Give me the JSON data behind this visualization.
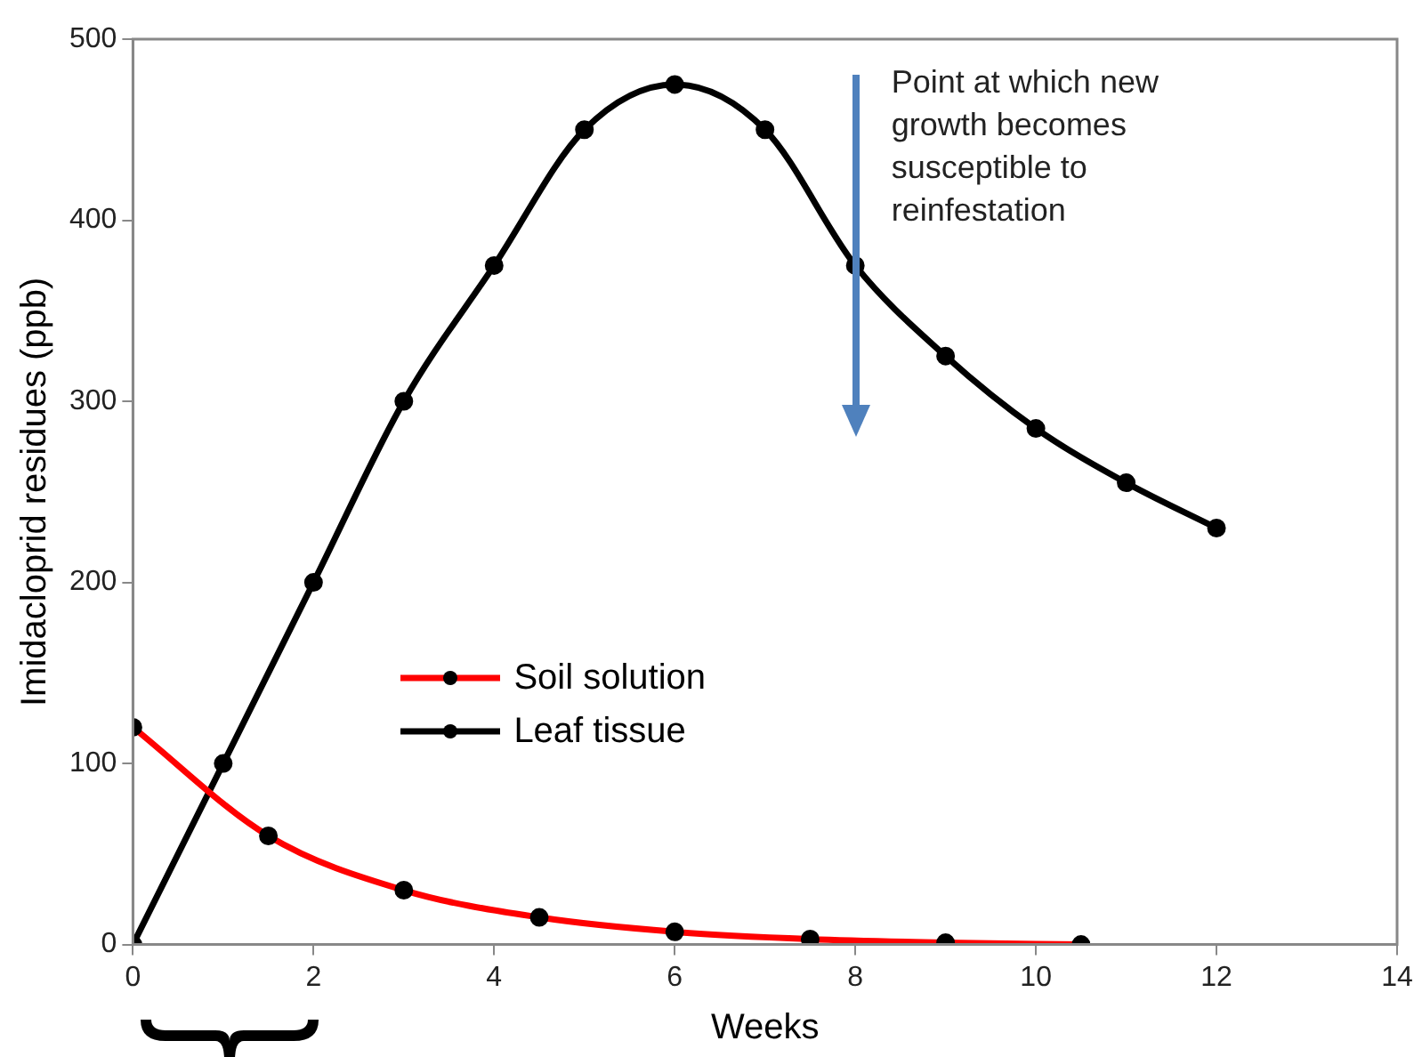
{
  "chart_data": {
    "type": "line",
    "xlabel": "Weeks",
    "ylabel": "Imidacloprid residues (ppb)",
    "xlim": [
      0,
      14
    ],
    "xticks": [
      0,
      2,
      4,
      6,
      8,
      10,
      12,
      14
    ],
    "ylim": [
      0,
      500
    ],
    "yticks": [
      0,
      100,
      200,
      300,
      400,
      500
    ],
    "grid": false,
    "legend": "left",
    "marker": "circle",
    "line_style": "solid",
    "series": [
      {
        "name": "Soil solution",
        "color": "#ff0000",
        "x": [
          0,
          1.5,
          3,
          4.5,
          6,
          7.5,
          9,
          10.5
        ],
        "values": [
          120,
          60,
          30,
          15,
          7,
          3,
          1,
          0
        ]
      },
      {
        "name": "Leaf tissue",
        "color": "#000000",
        "x": [
          0,
          1,
          2,
          3,
          4,
          5,
          6,
          7,
          8,
          9,
          10,
          11,
          12
        ],
        "values": [
          0,
          100,
          200,
          300,
          375,
          450,
          475,
          450,
          375,
          325,
          285,
          255,
          230
        ]
      }
    ],
    "annotations": [
      "Point at which new growth becomes susceptible to reinfestation"
    ]
  }
}
